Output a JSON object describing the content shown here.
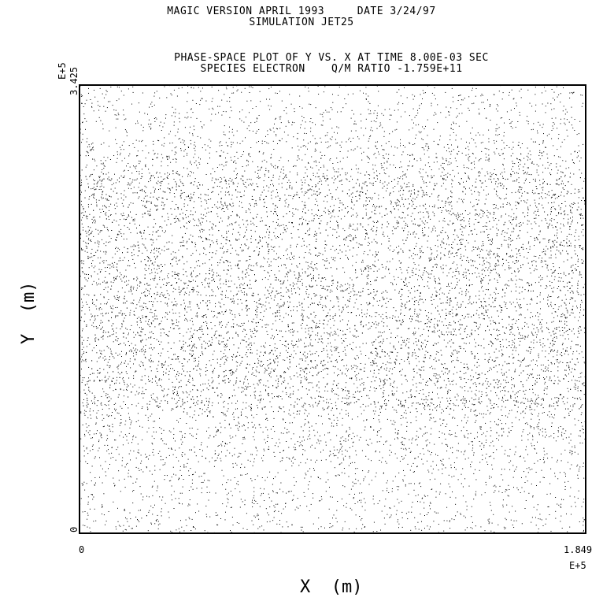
{
  "header": {
    "line1": "MAGIC VERSION APRIL 1993     DATE 3/24/97",
    "line2": "SIMULATION JET25"
  },
  "chart_data": {
    "type": "scatter",
    "title": "PHASE-SPACE PLOT OF Y VS. X AT TIME 8.00E-03 SEC",
    "subtitle": "SPECIES ELECTRON    Q/M RATIO -1.759E+11",
    "xlabel": "X  (m)",
    "ylabel": "Y  (m)",
    "xlim": [
      0,
      1.849
    ],
    "ylim": [
      0,
      3.425
    ],
    "x_multiplier": "E+5",
    "y_multiplier": "E+5",
    "x_ticks": [
      "0",
      "1.849"
    ],
    "y_ticks": [
      "0",
      "3.425"
    ],
    "grid": false,
    "series": [
      {
        "marker_color": "#000000",
        "density_bands": [
          {
            "y_range": [
              0.0,
              0.55
            ],
            "relative_density": 0.35
          },
          {
            "y_range": [
              0.55,
              0.95
            ],
            "relative_density": 0.55
          },
          {
            "y_range": [
              0.95,
              2.75
            ],
            "relative_density": 1.0
          },
          {
            "y_range": [
              2.75,
              3.0
            ],
            "relative_density": 0.6
          },
          {
            "y_range": [
              3.0,
              3.425
            ],
            "relative_density": 0.35
          }
        ]
      }
    ]
  }
}
